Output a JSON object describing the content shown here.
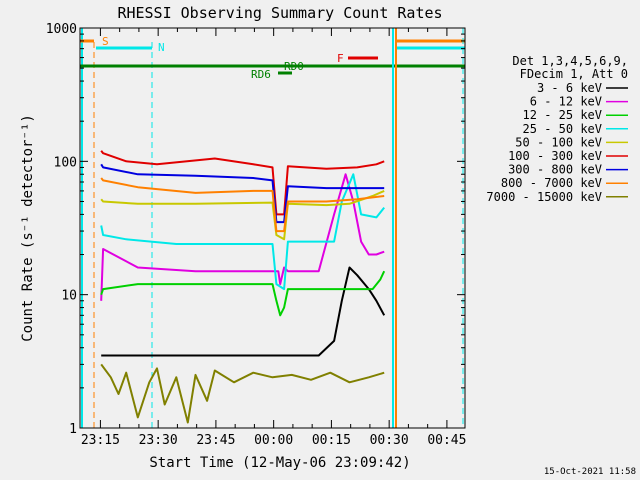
{
  "chart_data": {
    "type": "line",
    "title": "RHESSI Observing Summary Count Rates",
    "xlabel": "Start Time (12-May-06 23:09:42)",
    "ylabel": "Count Rate (s⁻¹ detector⁻¹)",
    "yscale": "log",
    "ylim": [
      1,
      1000
    ],
    "xlim_minutes": [
      0,
      100
    ],
    "x_tick_minutes": [
      5.3,
      20.3,
      35.3,
      50.3,
      65.3,
      80.3,
      95.3
    ],
    "x_tick_labels": [
      "23:15",
      "23:30",
      "23:45",
      "00:00",
      "00:15",
      "00:30",
      "00:45"
    ],
    "y_ticks": [
      1,
      10,
      100,
      1000
    ],
    "y_tick_labels": [
      "1",
      "10",
      "100",
      "1000"
    ],
    "legend_header": [
      "Det 1,3,4,5,6,9,",
      "FDecim 1, Att 0"
    ],
    "series": [
      {
        "name": "3 - 6 keV",
        "color": "#000000",
        "t": [
          5.5,
          30,
          62,
          66,
          68,
          70,
          72,
          75,
          77,
          79
        ],
        "v": [
          3.5,
          3.5,
          3.5,
          4.5,
          9,
          16,
          14,
          11,
          9,
          7
        ]
      },
      {
        "name": "6 - 12 keV",
        "color": "#e000e0",
        "t": [
          5.5,
          6,
          15,
          30,
          50,
          51.5,
          52,
          53,
          54,
          62,
          66,
          69,
          71,
          73,
          75,
          77,
          79
        ],
        "v": [
          9,
          22,
          16,
          15,
          15,
          15,
          12,
          16,
          15,
          15,
          40,
          80,
          50,
          25,
          20,
          20,
          21
        ]
      },
      {
        "name": "12 - 25 keV",
        "color": "#00d000",
        "t": [
          5.5,
          6,
          15,
          30,
          50,
          51,
          52,
          53,
          54,
          62,
          70,
          76,
          78,
          79
        ],
        "v": [
          10,
          11,
          12,
          12,
          12,
          9,
          7,
          8,
          11,
          11,
          11,
          11,
          13,
          15
        ]
      },
      {
        "name": "25 - 50 keV",
        "color": "#00e8e8",
        "t": [
          5.5,
          6,
          12,
          25,
          50,
          51,
          53,
          54,
          60,
          66,
          68,
          71,
          73,
          77,
          79
        ],
        "v": [
          33,
          28,
          26,
          24,
          24,
          12,
          11,
          25,
          25,
          25,
          50,
          80,
          40,
          38,
          45
        ]
      },
      {
        "name": "50 - 100 keV",
        "color": "#c8c800",
        "t": [
          5.5,
          6,
          15,
          30,
          50,
          51,
          53,
          54,
          64,
          70,
          76,
          79
        ],
        "v": [
          52,
          50,
          48,
          48,
          49,
          28,
          26,
          48,
          47,
          48,
          55,
          60
        ]
      },
      {
        "name": "100 - 300 keV",
        "color": "#e00000",
        "t": [
          5.5,
          6,
          12,
          20,
          35,
          45,
          50,
          51,
          53,
          54,
          64,
          72,
          77,
          79
        ],
        "v": [
          120,
          115,
          100,
          95,
          105,
          95,
          90,
          40,
          40,
          92,
          88,
          90,
          95,
          100
        ]
      },
      {
        "name": "300 - 800 keV",
        "color": "#0000e0",
        "t": [
          5.5,
          6,
          15,
          30,
          45,
          50,
          51,
          53,
          54,
          64,
          72,
          79
        ],
        "v": [
          95,
          90,
          80,
          78,
          75,
          72,
          35,
          35,
          65,
          63,
          63,
          63
        ]
      },
      {
        "name": "800 - 7000 keV",
        "color": "#ff8000",
        "t": [
          5.5,
          6,
          15,
          30,
          45,
          50,
          51,
          53,
          54,
          64,
          72,
          79
        ],
        "v": [
          75,
          72,
          64,
          58,
          60,
          60,
          30,
          30,
          50,
          50,
          52,
          55
        ]
      },
      {
        "name": "7000 - 15000 keV",
        "color": "#808000",
        "t": [
          5.5,
          8,
          10,
          12,
          15,
          18,
          20,
          22,
          25,
          28,
          30,
          33,
          35,
          40,
          45,
          50,
          55,
          60,
          65,
          70,
          75,
          79
        ],
        "v": [
          3,
          2.4,
          1.8,
          2.6,
          1.2,
          2.2,
          2.8,
          1.5,
          2.4,
          1.1,
          2.5,
          1.6,
          2.7,
          2.2,
          2.6,
          2.4,
          2.5,
          2.3,
          2.6,
          2.2,
          2.4,
          2.6
        ]
      }
    ],
    "annotations": {
      "saa_label": "S",
      "night_label": "N",
      "flare_label": "F",
      "decim_label_upper": "RD0",
      "decim_label_lower": "RD6"
    },
    "timestamp": "15-Oct-2021 11:58"
  }
}
